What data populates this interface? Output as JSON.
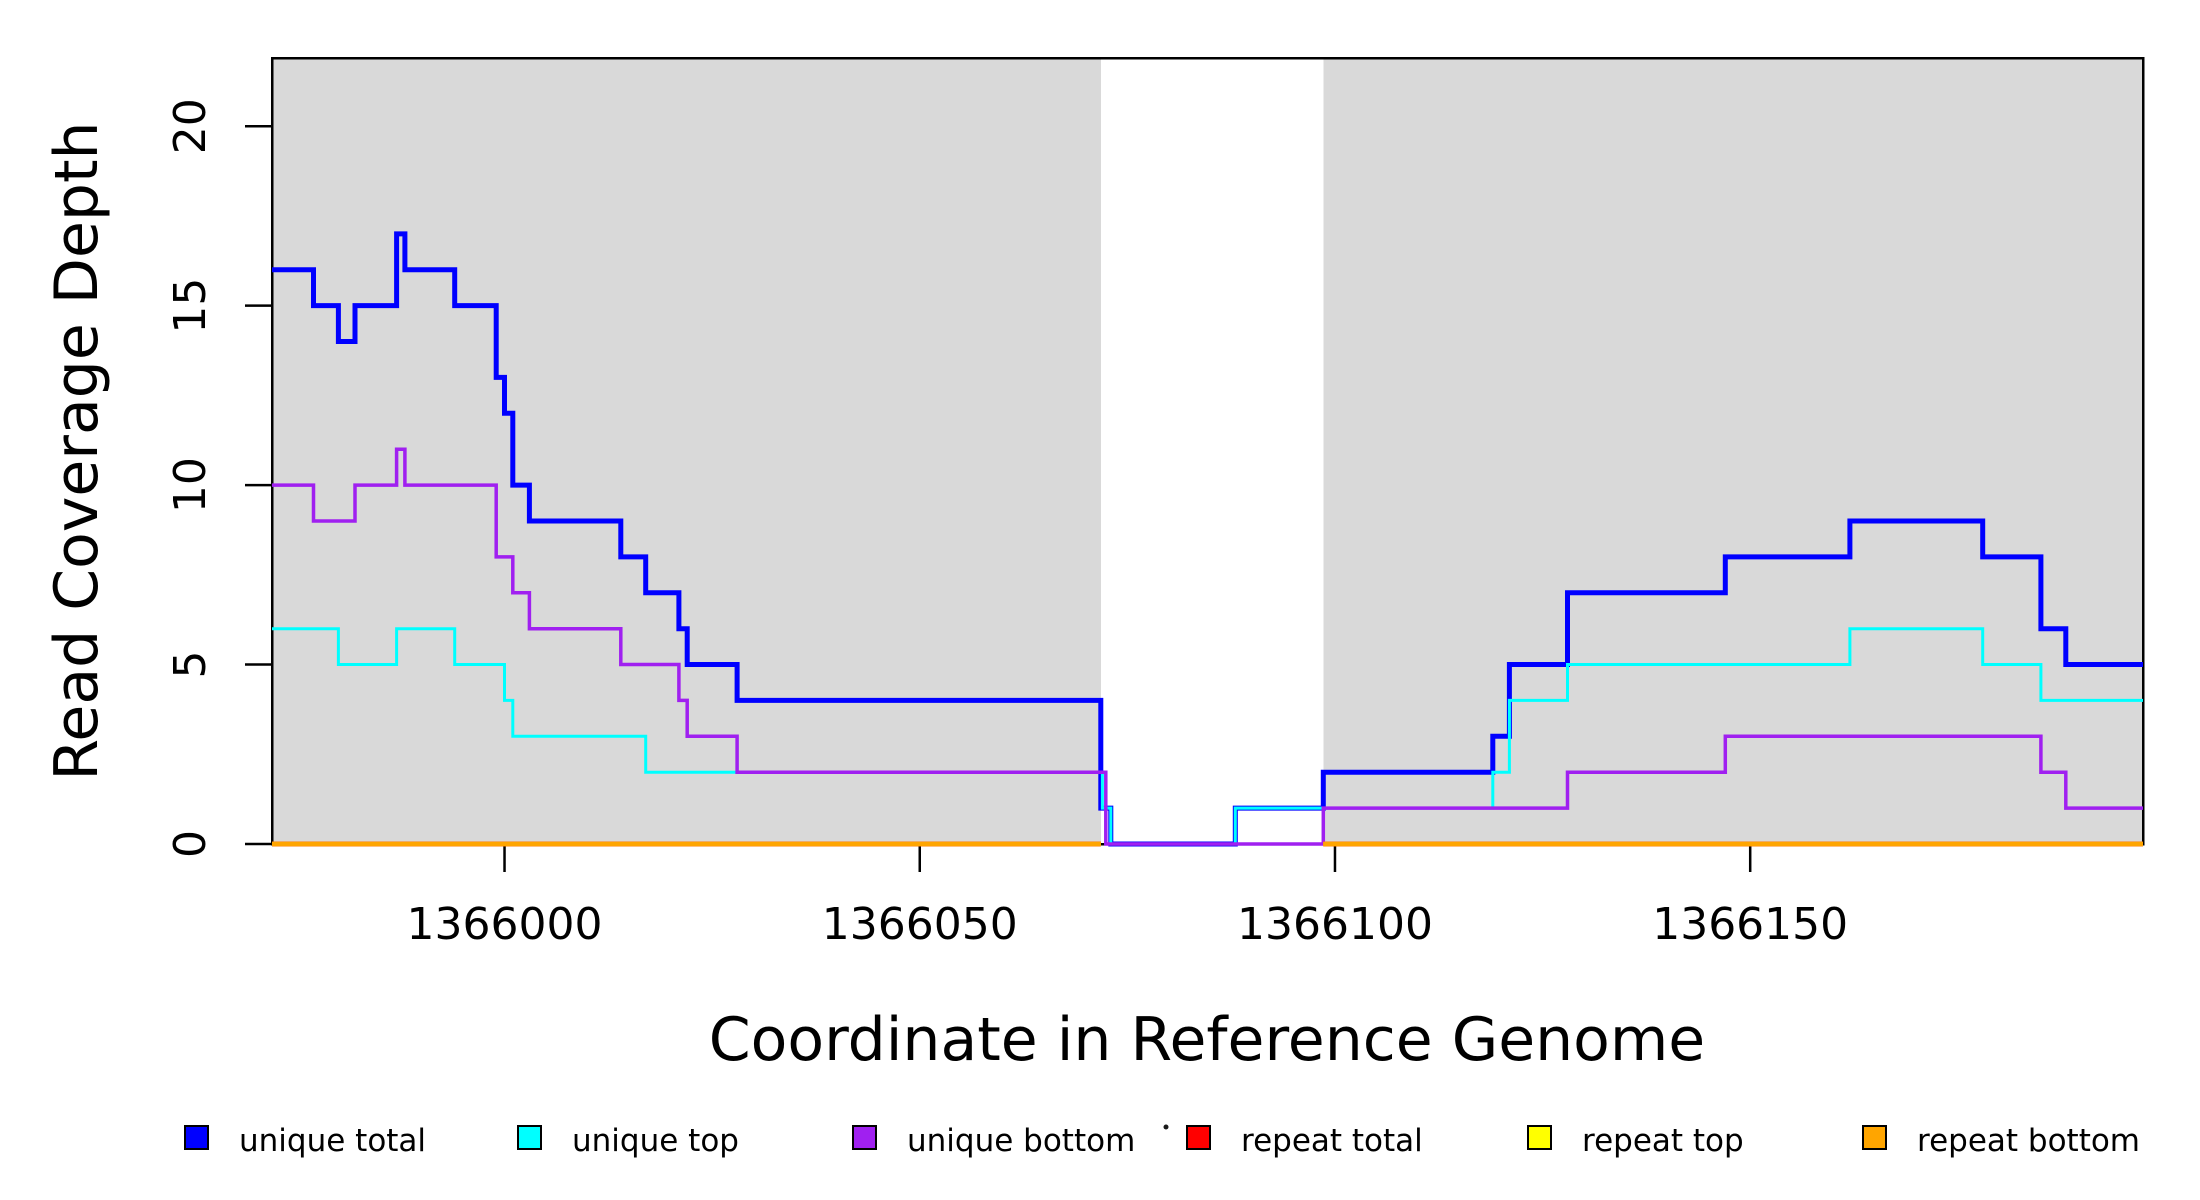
{
  "chart_data": {
    "type": "line",
    "subtype": "step",
    "title": "",
    "xlabel": "Coordinate in Reference Genome",
    "ylabel": "Read Coverage Depth",
    "xlim": [
      1365972,
      1366197.3
    ],
    "ylim": [
      0,
      21.9
    ],
    "x_ticks": [
      1366000,
      1366050,
      1366100,
      1366150
    ],
    "y_ticks": [
      0,
      5,
      10,
      15,
      20
    ],
    "grid": false,
    "plot_background": "#FFFFFF",
    "shaded_band_color": "#D9D9D9",
    "shaded_bands": [
      {
        "from": 1365972,
        "to": 1366071.8
      },
      {
        "from": 1366098.6,
        "to": 1366197.3
      }
    ],
    "axis_color": "#000000",
    "legend_position": "bottom",
    "series": [
      {
        "name": "unique total",
        "color": "#0000FF",
        "line_width": 5,
        "segments": [
          [
            [
              1365972,
              16
            ],
            [
              1365977,
              15
            ],
            [
              1365980,
              14
            ],
            [
              1365982,
              15
            ],
            [
              1365987,
              17
            ],
            [
              1365988,
              16
            ],
            [
              1365994,
              15
            ],
            [
              1365999,
              13
            ],
            [
              1366000,
              12
            ],
            [
              1366001,
              10
            ],
            [
              1366003,
              9
            ],
            [
              1366014,
              8
            ],
            [
              1366017,
              7
            ],
            [
              1366021,
              6
            ],
            [
              1366022,
              5
            ],
            [
              1366028,
              4
            ],
            [
              1366071.8,
              1
            ],
            [
              1366073,
              0
            ],
            [
              1366088,
              1
            ],
            [
              1366098.6,
              2
            ],
            [
              1366119,
              3
            ],
            [
              1366121,
              5
            ],
            [
              1366128,
              7
            ],
            [
              1366147,
              8
            ],
            [
              1366162,
              9
            ],
            [
              1366178,
              8
            ],
            [
              1366185,
              6
            ],
            [
              1366188,
              5
            ],
            [
              1366197.3,
              5
            ]
          ]
        ]
      },
      {
        "name": "unique top",
        "color": "#00FFFF",
        "line_width": 3,
        "segments": [
          [
            [
              1365972,
              6
            ],
            [
              1365980,
              5
            ],
            [
              1365987,
              6
            ],
            [
              1365994,
              5
            ],
            [
              1366000,
              4
            ],
            [
              1366001,
              3
            ],
            [
              1366017,
              2
            ],
            [
              1366072,
              1
            ],
            [
              1366073,
              0
            ],
            [
              1366088,
              1
            ],
            [
              1366119,
              2
            ],
            [
              1366121,
              4
            ],
            [
              1366128,
              5
            ],
            [
              1366162,
              6
            ],
            [
              1366178,
              5
            ],
            [
              1366185,
              4
            ],
            [
              1366197.3,
              4
            ]
          ]
        ]
      },
      {
        "name": "unique bottom",
        "color": "#A020F0",
        "line_width": 3.5,
        "segments": [
          [
            [
              1365972,
              10
            ],
            [
              1365977,
              9
            ],
            [
              1365982,
              10
            ],
            [
              1365987,
              11
            ],
            [
              1365988,
              10
            ],
            [
              1365999,
              8
            ],
            [
              1366001,
              7
            ],
            [
              1366003,
              6
            ],
            [
              1366014,
              5
            ],
            [
              1366021,
              4
            ],
            [
              1366022,
              3
            ],
            [
              1366028,
              2
            ],
            [
              1366072.4,
              0
            ],
            [
              1366098.6,
              1
            ],
            [
              1366128,
              2
            ],
            [
              1366147,
              3
            ],
            [
              1366185,
              2
            ],
            [
              1366188,
              1
            ],
            [
              1366197.3,
              1
            ]
          ]
        ]
      },
      {
        "name": "repeat total",
        "color": "#FF0000",
        "line_width": 5,
        "segments": [
          [
            [
              1365972,
              0
            ],
            [
              1366071.8,
              0
            ]
          ],
          [
            [
              1366098.6,
              0
            ],
            [
              1366197.3,
              0
            ]
          ]
        ]
      },
      {
        "name": "repeat top",
        "color": "#FFFF00",
        "line_width": 4.5,
        "segments": [
          [
            [
              1365972,
              0
            ],
            [
              1366071.8,
              0
            ]
          ],
          [
            [
              1366098.6,
              0
            ],
            [
              1366197.3,
              0
            ]
          ]
        ]
      },
      {
        "name": "repeat bottom",
        "color": "#FFA500",
        "line_width": 4,
        "segments": [
          [
            [
              1365972,
              0
            ],
            [
              1366071.8,
              0
            ]
          ],
          [
            [
              1366098.6,
              0
            ],
            [
              1366197.3,
              0
            ]
          ]
        ]
      }
    ],
    "legend": {
      "items": [
        {
          "label": "unique total",
          "color": "#0000FF"
        },
        {
          "label": "unique top",
          "color": "#00FFFF"
        },
        {
          "label": "unique bottom",
          "color": "#A020F0"
        },
        {
          "label": "repeat total",
          "color": "#FF0000"
        },
        {
          "label": "repeat top",
          "color": "#FFFF00"
        },
        {
          "label": "repeat bottom",
          "color": "#FFA500"
        }
      ],
      "stray_mark": "."
    }
  }
}
